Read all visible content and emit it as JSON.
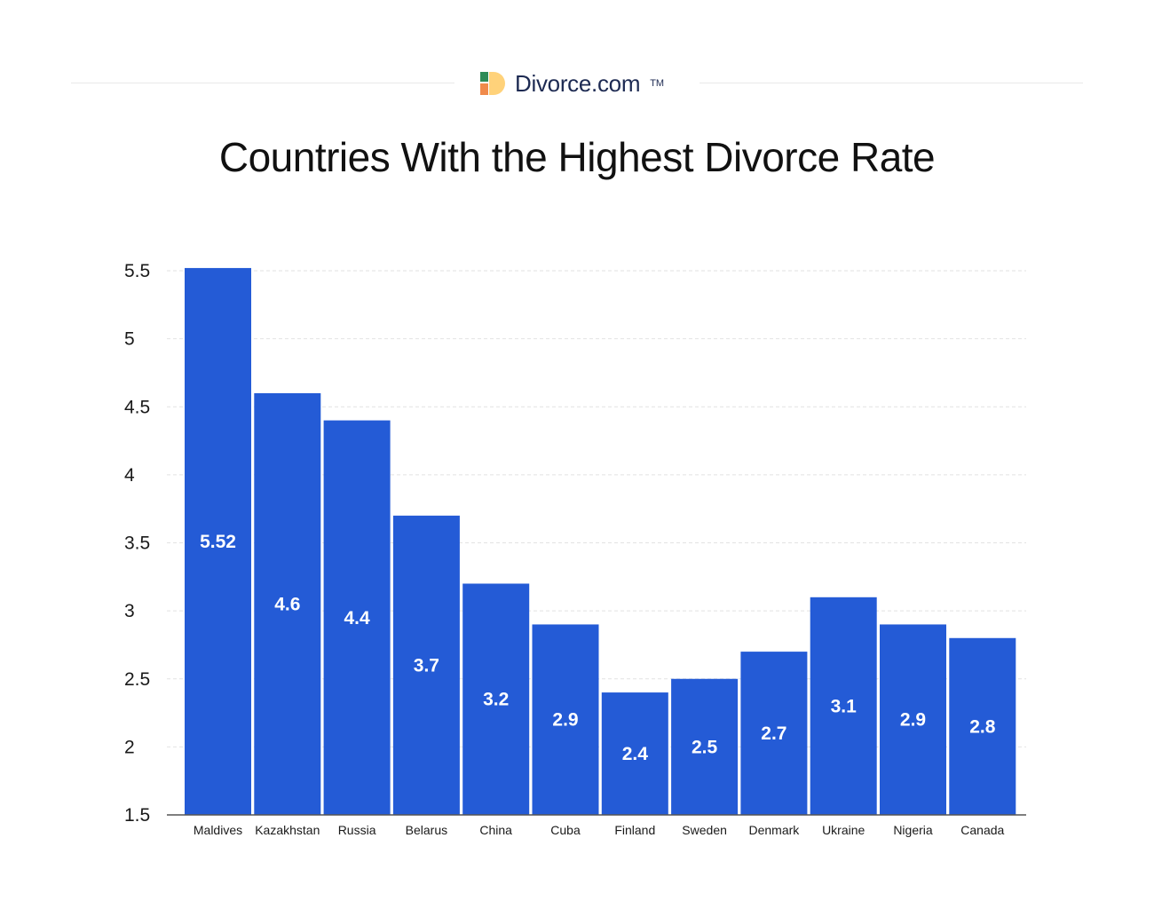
{
  "brand": {
    "name": "Divorce.com",
    "trademark": "TM",
    "logo_colors": [
      "#2e8b57",
      "#ffd27a",
      "#f08a4b",
      "#2f6db5"
    ]
  },
  "colors": {
    "bar": "#245bd6",
    "grid": "#e2e2e2",
    "axis": "#555555",
    "title": "#111111",
    "brand_text": "#1d2a52"
  },
  "chart_data": {
    "type": "bar",
    "title": "Countries With the Highest Divorce Rate",
    "xlabel": "",
    "ylabel": "",
    "categories": [
      "Maldives",
      "Kazakhstan",
      "Russia",
      "Belarus",
      "China",
      "Cuba",
      "Finland",
      "Sweden",
      "Denmark",
      "Ukraine",
      "Nigeria",
      "Canada"
    ],
    "values": [
      5.52,
      4.6,
      4.4,
      3.7,
      3.2,
      2.9,
      2.4,
      2.5,
      2.7,
      3.1,
      2.9,
      2.8
    ],
    "value_labels": [
      "5.52",
      "4.6",
      "4.4",
      "3.7",
      "3.2",
      "2.9",
      "2.4",
      "2.5",
      "2.7",
      "3.1",
      "2.9",
      "2.8"
    ],
    "yticks": [
      "1.5",
      "2",
      "2.5",
      "3",
      "3.5",
      "4",
      "4.5",
      "5",
      "5.5"
    ],
    "ylim": [
      1.5,
      5.5
    ],
    "grid": true,
    "legend": "none"
  }
}
